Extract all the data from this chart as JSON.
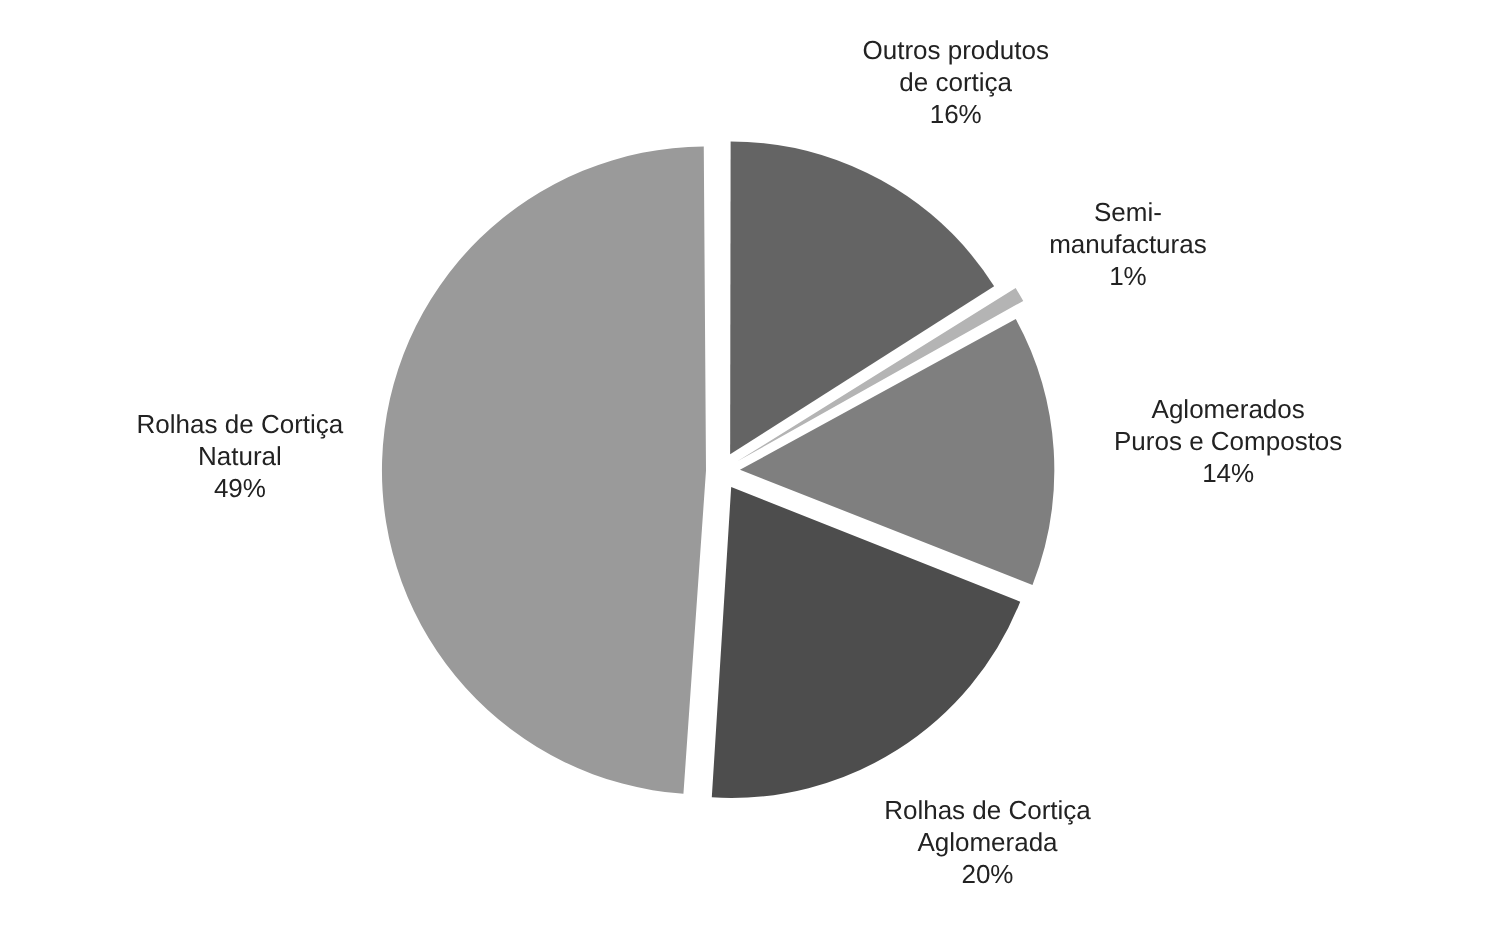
{
  "chart_data": {
    "type": "pie",
    "categories": [
      "Outros produtos\nde cortiça",
      "Semi-\nmanufacturas",
      "Aglomerados\nPuros e Compostos",
      "Rolhas de Cortiça\nAglomerada",
      "Rolhas de Cortiça\nNatural"
    ],
    "values": [
      16,
      1,
      14,
      20,
      49
    ],
    "value_labels": [
      "16%",
      "1%",
      "14%",
      "20%",
      "49%"
    ],
    "colors": [
      "#646464",
      "#b4b4b4",
      "#7f7f7f",
      "#4d4d4d",
      "#9a9a9a"
    ],
    "legend": false
  }
}
